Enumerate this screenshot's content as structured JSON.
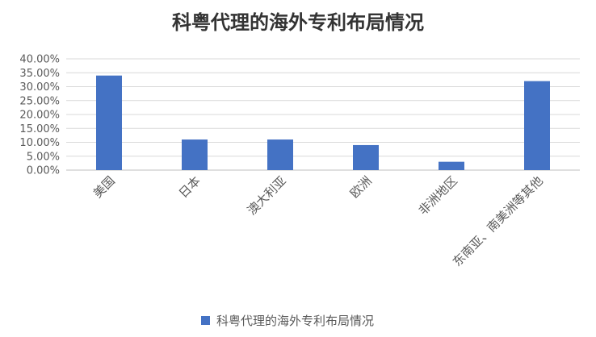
{
  "chart_data": {
    "type": "bar",
    "title": "科粤代理的海外专利布局情况",
    "categories": [
      "美国",
      "日本",
      "澳大利亚",
      "欧洲",
      "非洲地区",
      "东南亚、南美洲等其他"
    ],
    "series": [
      {
        "name": "科粤代理的海外专利布局情况",
        "values": [
          34.0,
          11.0,
          11.0,
          9.0,
          3.0,
          32.0
        ],
        "color": "#4472C4"
      }
    ],
    "ylim": [
      0,
      40
    ],
    "ytick_labels": [
      "0.00%",
      "5.00%",
      "10.00%",
      "15.00%",
      "20.00%",
      "25.00%",
      "30.00%",
      "35.00%",
      "40.00%"
    ],
    "grid": true,
    "legend_position": "bottom"
  }
}
